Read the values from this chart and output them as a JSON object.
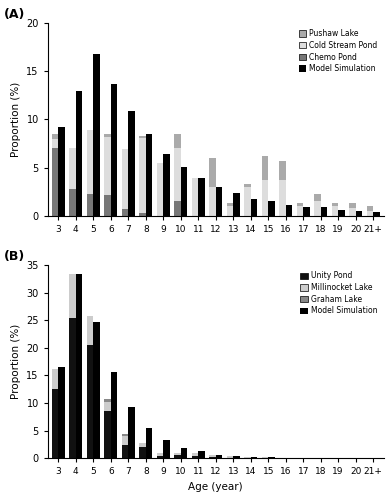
{
  "panel_a": {
    "title": "(A)",
    "ylabel": "Proportion (%)",
    "ylim": [
      0,
      20
    ],
    "yticks": [
      0,
      5,
      10,
      15,
      20
    ],
    "ages": [
      "3",
      "4",
      "5",
      "6",
      "7",
      "8",
      "9",
      "10",
      "11",
      "12",
      "13",
      "14",
      "15",
      "16",
      "17",
      "18",
      "19",
      "20",
      "21+"
    ],
    "pushaw_lake": [
      0.5,
      0.0,
      0.0,
      0.3,
      0.0,
      0.2,
      0.0,
      1.5,
      0.0,
      3.0,
      0.3,
      0.3,
      2.5,
      2.0,
      0.3,
      0.8,
      0.3,
      0.5,
      0.5
    ],
    "cold_stream_pond": [
      1.0,
      4.2,
      6.6,
      6.0,
      6.2,
      7.8,
      5.5,
      5.5,
      3.9,
      3.0,
      1.0,
      3.0,
      3.7,
      3.7,
      1.0,
      1.5,
      1.0,
      0.8,
      0.5
    ],
    "chemo_pond": [
      7.0,
      2.8,
      2.3,
      2.2,
      0.7,
      0.3,
      0.0,
      1.5,
      0.0,
      0.0,
      0.0,
      0.0,
      0.0,
      0.0,
      0.0,
      0.0,
      0.0,
      0.0,
      0.0
    ],
    "model_simulation": [
      9.2,
      13.0,
      16.8,
      13.7,
      10.9,
      8.5,
      6.4,
      5.1,
      3.9,
      3.0,
      2.4,
      1.8,
      1.5,
      1.1,
      0.9,
      0.9,
      0.6,
      0.5,
      0.4
    ],
    "legend_labels": [
      "Pushaw Lake",
      "Cold Stream Pond",
      "Chemo Pond",
      "Model Simulation"
    ],
    "pushaw_color": "#aaaaaa",
    "cold_color": "#dddddd",
    "chemo_color": "#777777",
    "model_color": "#000000"
  },
  "panel_b": {
    "title": "(B)",
    "ylabel": "Proportion (%)",
    "xlabel": "Age (year)",
    "ylim": [
      0,
      35
    ],
    "yticks": [
      0,
      5,
      10,
      15,
      20,
      25,
      30,
      35
    ],
    "ages": [
      "3",
      "4",
      "5",
      "6",
      "7",
      "8",
      "9",
      "10",
      "11",
      "12",
      "13",
      "14",
      "15",
      "16",
      "17",
      "18",
      "19",
      "20",
      "21+"
    ],
    "unity_pond": [
      12.5,
      25.5,
      20.5,
      8.5,
      2.4,
      2.0,
      0.3,
      0.5,
      0.3,
      0.2,
      0.1,
      0.1,
      0.05,
      0.03,
      0.02,
      0.01,
      0.01,
      0.01,
      0.01
    ],
    "millinocket_lake": [
      3.6,
      8.0,
      5.3,
      1.7,
      1.7,
      0.8,
      0.7,
      0.5,
      0.7,
      0.4,
      0.2,
      0.15,
      0.1,
      0.07,
      0.04,
      0.03,
      0.02,
      0.01,
      0.01
    ],
    "graham_lake": [
      0.0,
      0.0,
      0.0,
      0.5,
      0.3,
      0.0,
      0.0,
      0.0,
      0.0,
      0.0,
      0.0,
      0.0,
      0.0,
      0.0,
      0.0,
      0.0,
      0.0,
      0.0,
      0.0
    ],
    "model_simulation": [
      16.5,
      33.5,
      24.7,
      15.7,
      9.3,
      5.4,
      3.3,
      1.9,
      1.2,
      0.6,
      0.35,
      0.2,
      0.12,
      0.08,
      0.05,
      0.03,
      0.02,
      0.02,
      0.01
    ],
    "legend_labels": [
      "Unity Pond",
      "Millinocket Lake",
      "Graham Lake",
      "Model Simulation"
    ],
    "unity_color": "#111111",
    "millinocket_color": "#cccccc",
    "graham_color": "#888888",
    "model_color": "#000000"
  },
  "bar_width": 0.38,
  "fig_width": 3.92,
  "fig_height": 5.0,
  "dpi": 100,
  "background_color": "#ffffff"
}
